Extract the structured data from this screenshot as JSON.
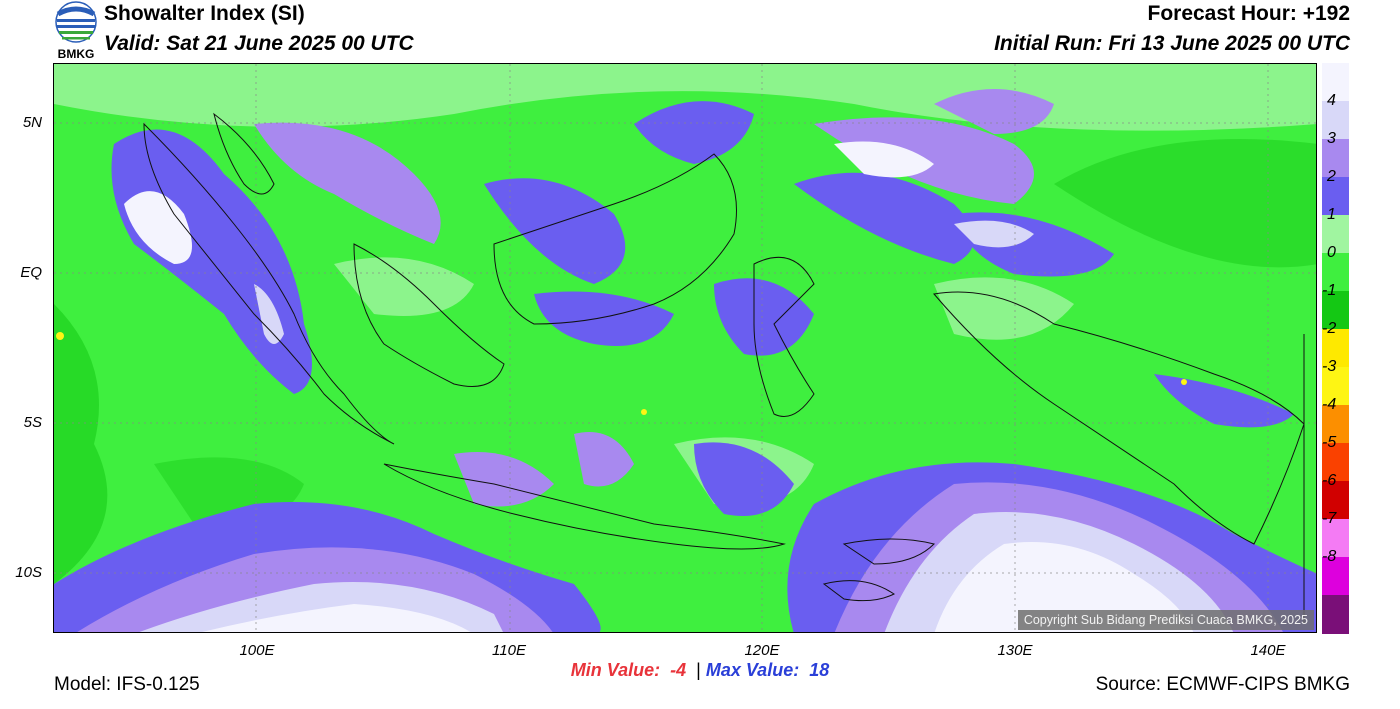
{
  "header": {
    "title": "Showalter Index (SI)",
    "valid": "Valid: Sat 21 June 2025 00 UTC",
    "forecast_hour": "Forecast Hour: +192",
    "initial_run": "Initial Run: Fri 13 June 2025 00 UTC",
    "logo_text": "BMKG"
  },
  "map": {
    "lat_labels": [
      "5N",
      "EQ",
      "5S",
      "10S"
    ],
    "lon_labels": [
      "100E",
      "110E",
      "120E",
      "130E",
      "140E"
    ],
    "copyright": "Copyright Sub Bidang Prediksi Cuaca BMKG, 2025"
  },
  "colorbar": {
    "colors": [
      "#f4f4fe",
      "#d8d8f8",
      "#a889ef",
      "#6a5ef0",
      "#a0f5a0",
      "#3fef3f",
      "#14c814",
      "#fee900",
      "#fef514",
      "#fc8f00",
      "#fa4100",
      "#d10000",
      "#f47bf4",
      "#dd00dd",
      "#7a0f78"
    ],
    "labels": [
      "4",
      "3",
      "2",
      "1",
      "0",
      "-1",
      "-2",
      "-3",
      "-4",
      "-5",
      "-6",
      "-7",
      "-8"
    ]
  },
  "footer": {
    "min_label": "Min Value:",
    "min_value": "-4",
    "separator": "|",
    "max_label": "Max Value:",
    "max_value": "18",
    "model": "Model: IFS-0.125",
    "source": "Source: ECMWF-CIPS BMKG"
  }
}
